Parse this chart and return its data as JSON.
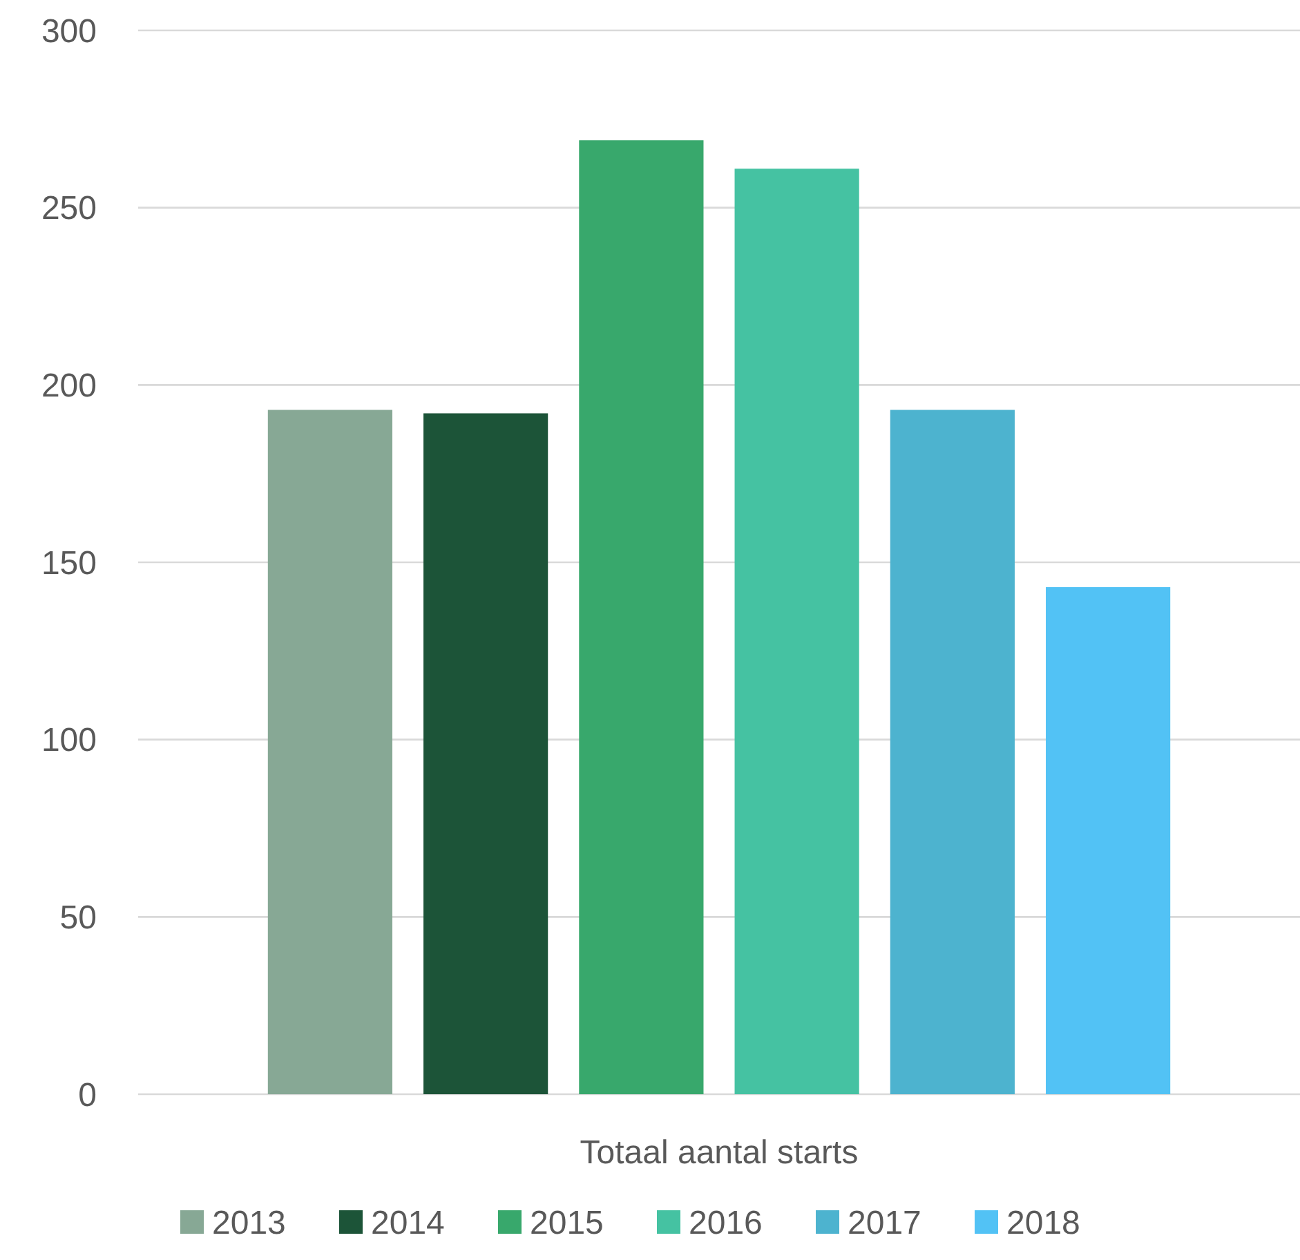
{
  "chart_data": {
    "type": "bar",
    "categories": [
      "Totaal aantal starts"
    ],
    "series": [
      {
        "name": "2013",
        "color": "#87a895",
        "values": [
          193
        ]
      },
      {
        "name": "2014",
        "color": "#1c5438",
        "values": [
          192
        ]
      },
      {
        "name": "2015",
        "color": "#38a86c",
        "values": [
          269
        ]
      },
      {
        "name": "2016",
        "color": "#45c2a2",
        "values": [
          261
        ]
      },
      {
        "name": "2017",
        "color": "#4db3cf",
        "values": [
          193
        ]
      },
      {
        "name": "2018",
        "color": "#52c2f5",
        "values": [
          143
        ]
      }
    ],
    "ylim": [
      0,
      300
    ],
    "yticks": [
      0,
      50,
      100,
      150,
      200,
      250,
      300
    ],
    "grid": "y",
    "legend": "bottom"
  }
}
